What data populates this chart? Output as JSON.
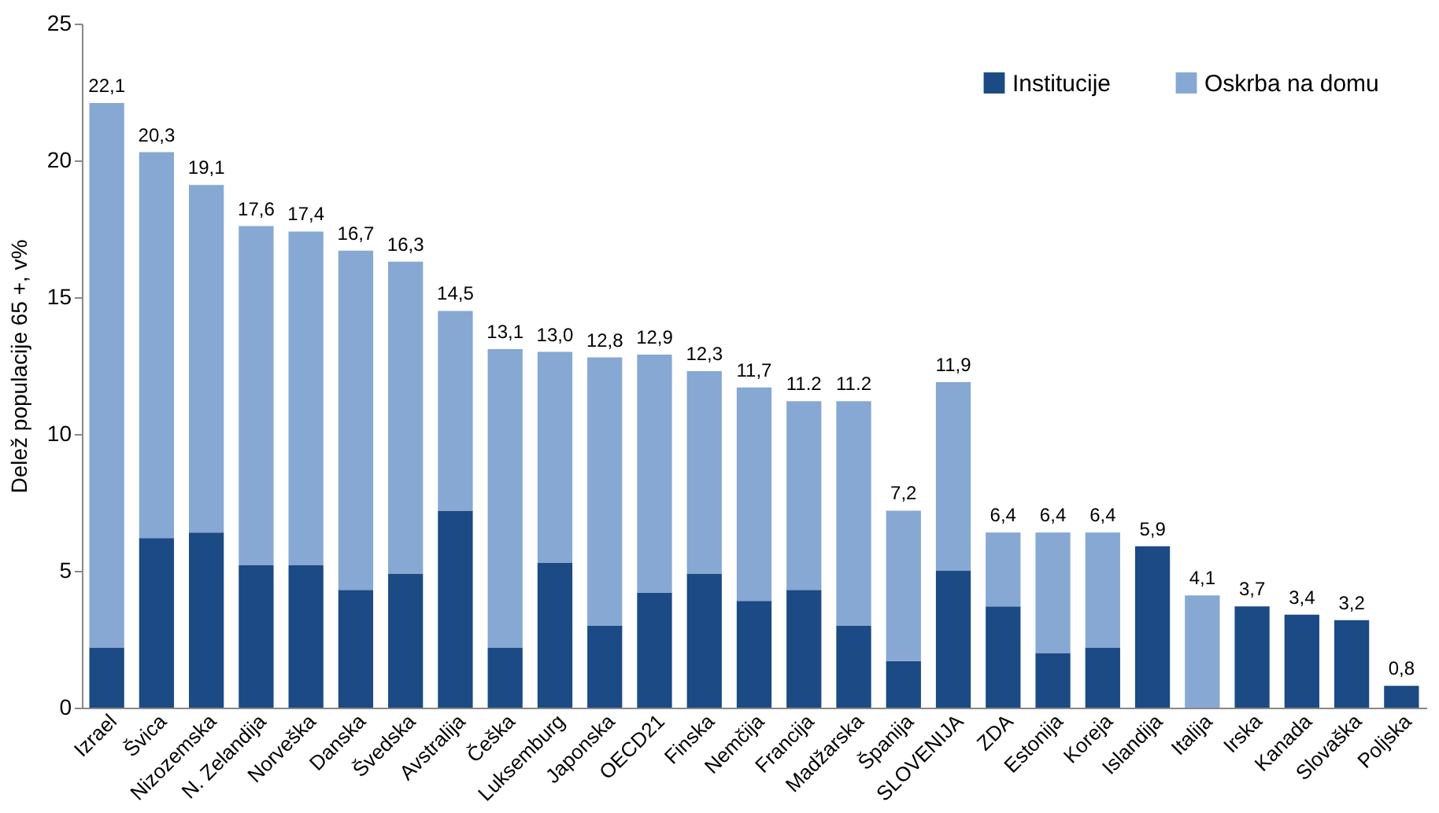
{
  "chart_data": {
    "type": "bar",
    "stacked": true,
    "ylabel": "Delež populacije 65 +, v%",
    "categories": [
      "Izrael",
      "Švica",
      "Nizozemska",
      "N. Zelandija",
      "Norveška",
      "Danska",
      "Švedska",
      "Avstralija",
      "Češka",
      "Luksemburg",
      "Japonska",
      "OECD21",
      "Finska",
      "Nemčija",
      "Francija",
      "Madžarska",
      "Španija",
      "SLOVENIJA",
      "ZDA",
      "Estonija",
      "Koreja",
      "Islandija",
      "Italija",
      "Irska",
      "Kanada",
      "Slovaška",
      "Poljska"
    ],
    "series": [
      {
        "name": "Institucije",
        "color": "#1b4a84",
        "values": [
          2.2,
          6.2,
          6.4,
          5.2,
          5.2,
          4.3,
          4.9,
          7.2,
          2.2,
          5.3,
          3.0,
          4.2,
          4.9,
          3.9,
          4.3,
          3.0,
          1.7,
          5.0,
          3.7,
          2.0,
          2.2,
          5.9,
          0,
          3.7,
          3.4,
          3.2,
          0.8
        ]
      },
      {
        "name": "Oskrba na domu",
        "color": "#86a8d3",
        "values": [
          19.9,
          14.1,
          12.7,
          12.4,
          12.2,
          12.4,
          11.4,
          7.3,
          10.9,
          7.7,
          9.8,
          8.7,
          7.4,
          7.8,
          6.9,
          8.2,
          5.5,
          6.9,
          2.7,
          4.4,
          4.2,
          0,
          4.1,
          0,
          0,
          0,
          0
        ]
      }
    ],
    "totals": [
      "22,1",
      "20,3",
      "19,1",
      "17,6",
      "17,4",
      "16,7",
      "16,3",
      "14,5",
      "13,1",
      "13,0",
      "12,8",
      "12,9",
      "12,3",
      "11,7",
      "11.2",
      "11.2",
      "7,2",
      "11,9",
      "6,4",
      "6,4",
      "6,4",
      "5,9",
      "4,1",
      "3,7",
      "3,4",
      "3,2",
      "0,8"
    ],
    "ylim": [
      0,
      25
    ],
    "yticks": [
      0,
      5,
      10,
      15,
      20,
      25
    ],
    "grid": false,
    "legend": "top right"
  }
}
